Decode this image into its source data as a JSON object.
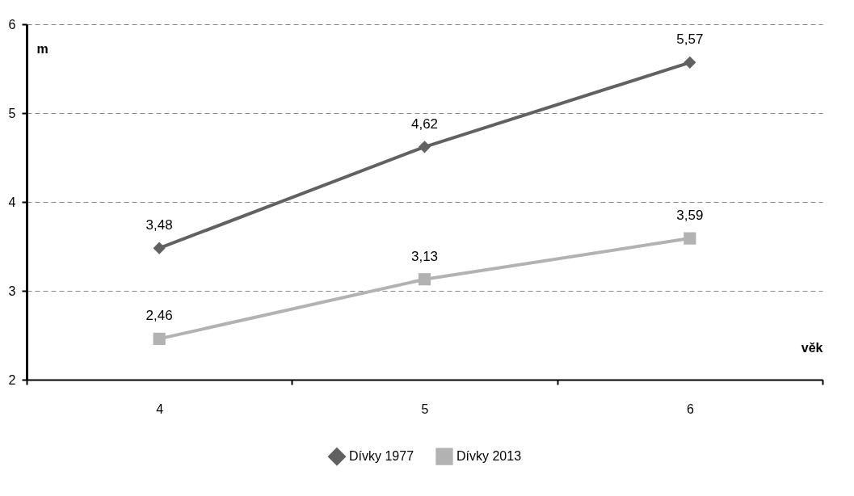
{
  "chart_data": {
    "type": "line",
    "xlabel": "věk",
    "ylabel": "m",
    "categories": [
      "4",
      "5",
      "6"
    ],
    "ylim": [
      2,
      6
    ],
    "yticks": [
      2,
      3,
      4,
      5,
      6
    ],
    "grid": "y",
    "legend": "bottom",
    "series": [
      {
        "name": "Dívky 1977",
        "color": "#616161",
        "marker": "diamond",
        "values": [
          3.48,
          4.62,
          5.57
        ],
        "value_labels": [
          "3,48",
          "4,62",
          "5,57"
        ]
      },
      {
        "name": "Dívky 2013",
        "color": "#b2b2b2",
        "marker": "square",
        "values": [
          2.46,
          3.13,
          3.59
        ],
        "value_labels": [
          "2,46",
          "3,13",
          "3,59"
        ]
      }
    ]
  }
}
